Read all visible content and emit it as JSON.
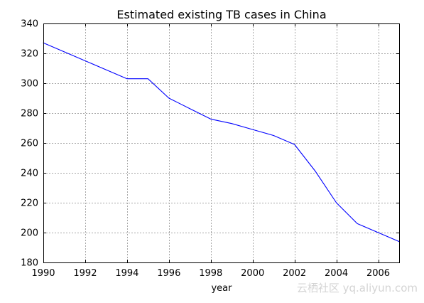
{
  "chart_data": {
    "type": "line",
    "title": "Estimated existing TB cases in China",
    "xlabel": "year",
    "ylabel": "",
    "x": [
      1990,
      1991,
      1992,
      1993,
      1994,
      1995,
      1996,
      1997,
      1998,
      1999,
      2000,
      2001,
      2002,
      2003,
      2004,
      2005,
      2006,
      2007
    ],
    "series": [
      {
        "values": [
          327,
          321,
          315,
          309,
          303,
          303,
          290,
          283,
          276,
          273,
          269,
          265,
          259,
          241,
          220,
          206,
          200,
          194
        ]
      }
    ],
    "xlim": [
      1990,
      2007
    ],
    "ylim": [
      180,
      340
    ],
    "x_tick_labels": [
      "1990",
      "1992",
      "1994",
      "1996",
      "1998",
      "2000",
      "2002",
      "2004",
      "2006"
    ],
    "y_tick_labels": [
      "180",
      "200",
      "220",
      "240",
      "260",
      "280",
      "300",
      "320",
      "340"
    ],
    "grid": true,
    "legend": false
  },
  "colors": {
    "line": "#0000ff",
    "grid": "#a8a8a8",
    "axes": "#000000"
  },
  "watermark": {
    "text": "云栖社区 yq.aliyun.com"
  }
}
